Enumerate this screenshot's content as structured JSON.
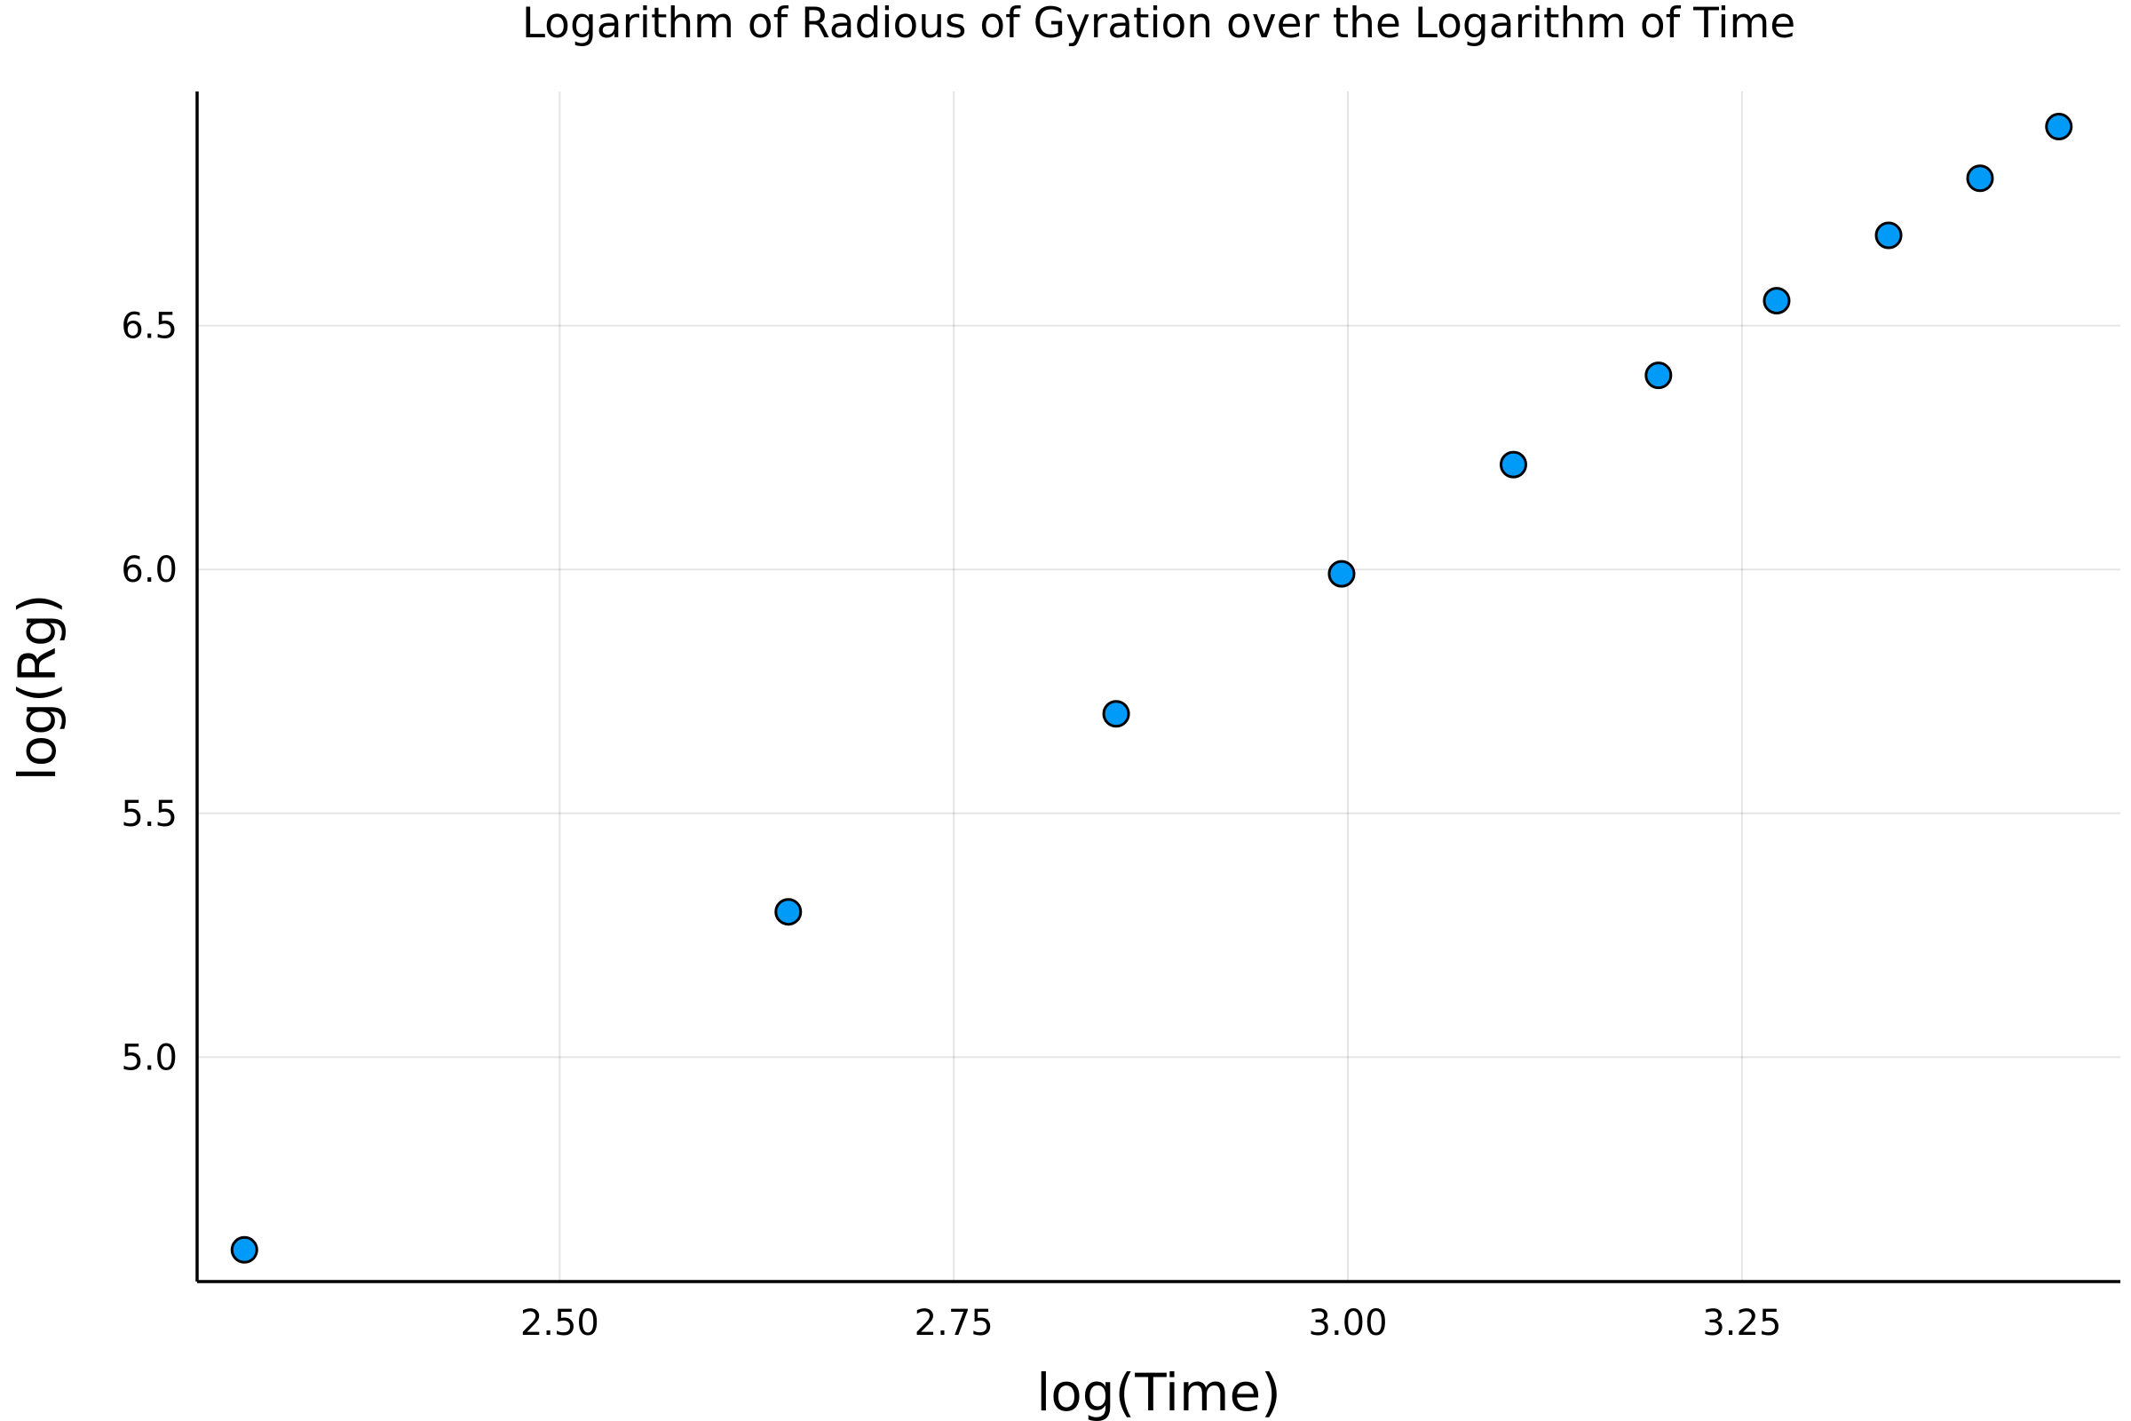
{
  "chart_data": {
    "type": "scatter",
    "title": "Logarithm of Radious of Gyration over the Logarithm of Time",
    "xlabel": "log(Time)",
    "ylabel": "log(Rg)",
    "xlim": [
      2.27,
      3.49
    ],
    "ylim": [
      4.54,
      6.98
    ],
    "xticks": [
      2.5,
      2.75,
      3.0,
      3.25
    ],
    "xtick_labels": [
      "2.50",
      "2.75",
      "3.00",
      "3.25"
    ],
    "yticks": [
      5.0,
      5.5,
      6.0,
      6.5
    ],
    "ytick_labels": [
      "5.0",
      "5.5",
      "6.0",
      "6.5"
    ],
    "grid": true,
    "legend": "none",
    "series": [
      {
        "color": "#009af9",
        "x": [
          2.3,
          2.645,
          2.853,
          2.996,
          3.105,
          3.197,
          3.272,
          3.343,
          3.401,
          3.451
        ],
        "y": [
          4.605,
          5.298,
          5.704,
          5.991,
          6.215,
          6.398,
          6.551,
          6.685,
          6.802,
          6.908
        ]
      }
    ]
  }
}
